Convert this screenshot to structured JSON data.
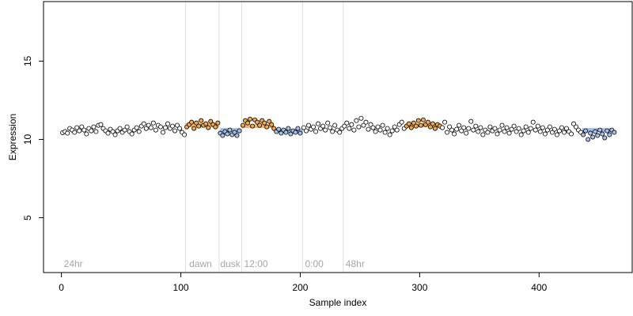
{
  "chart_data": {
    "type": "scatter",
    "title": "",
    "xlabel": "Sample index",
    "ylabel": "Expression",
    "xlim": [
      -15,
      478
    ],
    "ylim": [
      1.5,
      18.8
    ],
    "x_ticks": [
      0,
      100,
      200,
      300,
      400
    ],
    "y_ticks": [
      5,
      10,
      15
    ],
    "grid": false,
    "boundaries": [
      104,
      132,
      151,
      202,
      236
    ],
    "phase_labels": [
      {
        "text": "24hr",
        "x": 2
      },
      {
        "text": "dawn",
        "x": 107
      },
      {
        "text": "dusk",
        "x": 133
      },
      {
        "text": "12:00",
        "x": 153
      },
      {
        "text": "0:00",
        "x": 204
      },
      {
        "text": "48hr",
        "x": 238
      }
    ],
    "fit_segments": [
      {
        "x_start": 104,
        "x_end": 132,
        "y": 10.9,
        "color": "#e8a862"
      },
      {
        "x_start": 133,
        "x_end": 150,
        "y": 10.6,
        "color": "#8fb0e0"
      },
      {
        "x_start": 151,
        "x_end": 178,
        "y": 10.85,
        "color": "#e8a862"
      },
      {
        "x_start": 179,
        "x_end": 202,
        "y": 10.55,
        "color": "#8fb0e0"
      },
      {
        "x_start": 288,
        "x_end": 318,
        "y": 10.9,
        "color": "#e8a862"
      },
      {
        "x_start": 436,
        "x_end": 462,
        "y": 10.6,
        "color": "#8fb0e0"
      }
    ],
    "series": [
      {
        "marker_stroke": "#000000",
        "colors": {
          "day": "#f2a94a",
          "night": "#a9c1e8",
          "other": "#ffffff"
        },
        "points": [
          [
            1,
            10.43
          ],
          [
            3,
            10.5
          ],
          [
            5,
            10.4
          ],
          [
            7,
            10.7
          ],
          [
            9,
            10.6
          ],
          [
            11,
            10.45
          ],
          [
            13,
            10.75
          ],
          [
            15,
            10.55
          ],
          [
            17,
            10.8
          ],
          [
            19,
            10.6
          ],
          [
            21,
            10.35
          ],
          [
            23,
            10.7
          ],
          [
            25,
            10.55
          ],
          [
            27,
            10.8
          ],
          [
            29,
            10.5
          ],
          [
            31,
            10.9
          ],
          [
            33,
            10.95
          ],
          [
            35,
            10.7
          ],
          [
            37,
            10.55
          ],
          [
            39,
            10.4
          ],
          [
            41,
            10.65
          ],
          [
            43,
            10.5
          ],
          [
            45,
            10.3
          ],
          [
            47,
            10.55
          ],
          [
            49,
            10.7
          ],
          [
            51,
            10.45
          ],
          [
            53,
            10.6
          ],
          [
            55,
            10.8
          ],
          [
            57,
            10.5
          ],
          [
            59,
            10.35
          ],
          [
            61,
            10.6
          ],
          [
            63,
            10.75
          ],
          [
            65,
            10.5
          ],
          [
            67,
            10.85
          ],
          [
            69,
            11.0
          ],
          [
            71,
            10.7
          ],
          [
            73,
            10.9
          ],
          [
            75,
            10.75
          ],
          [
            77,
            11.05
          ],
          [
            79,
            10.6
          ],
          [
            81,
            10.9
          ],
          [
            83,
            10.8
          ],
          [
            85,
            10.45
          ],
          [
            87,
            10.75
          ],
          [
            89,
            11.0
          ],
          [
            91,
            10.7
          ],
          [
            93,
            10.85
          ],
          [
            95,
            10.55
          ],
          [
            97,
            10.9
          ],
          [
            99,
            10.7
          ],
          [
            101,
            10.45
          ],
          [
            103,
            10.3
          ],
          [
            105,
            10.8
          ],
          [
            107,
            10.95
          ],
          [
            109,
            11.1
          ],
          [
            111,
            10.7
          ],
          [
            113,
            11.05
          ],
          [
            115,
            10.85
          ],
          [
            117,
            11.2
          ],
          [
            119,
            10.9
          ],
          [
            121,
            11.0
          ],
          [
            123,
            10.75
          ],
          [
            125,
            11.15
          ],
          [
            127,
            10.95
          ],
          [
            129,
            10.8
          ],
          [
            131,
            11.05
          ],
          [
            133,
            10.4
          ],
          [
            135,
            10.25
          ],
          [
            137,
            10.5
          ],
          [
            139,
            10.35
          ],
          [
            141,
            10.6
          ],
          [
            143,
            10.3
          ],
          [
            145,
            10.45
          ],
          [
            147,
            10.25
          ],
          [
            149,
            10.55
          ],
          [
            152,
            10.9
          ],
          [
            154,
            11.2
          ],
          [
            156,
            11.05
          ],
          [
            158,
            11.3
          ],
          [
            160,
            10.85
          ],
          [
            162,
            11.25
          ],
          [
            164,
            11.1
          ],
          [
            166,
            10.9
          ],
          [
            168,
            11.2
          ],
          [
            170,
            11.05
          ],
          [
            172,
            10.8
          ],
          [
            174,
            11.15
          ],
          [
            176,
            10.95
          ],
          [
            178,
            10.7
          ],
          [
            180,
            10.5
          ],
          [
            182,
            10.65
          ],
          [
            184,
            10.4
          ],
          [
            186,
            10.6
          ],
          [
            188,
            10.45
          ],
          [
            190,
            10.7
          ],
          [
            192,
            10.35
          ],
          [
            194,
            10.55
          ],
          [
            196,
            10.45
          ],
          [
            198,
            10.7
          ],
          [
            200,
            10.4
          ],
          [
            203,
            10.75
          ],
          [
            205,
            10.55
          ],
          [
            207,
            10.9
          ],
          [
            209,
            10.65
          ],
          [
            211,
            10.8
          ],
          [
            213,
            10.5
          ],
          [
            215,
            11.0
          ],
          [
            217,
            10.7
          ],
          [
            219,
            10.85
          ],
          [
            221,
            10.6
          ],
          [
            223,
            11.05
          ],
          [
            225,
            10.75
          ],
          [
            227,
            10.5
          ],
          [
            229,
            10.9
          ],
          [
            231,
            10.6
          ],
          [
            233,
            10.45
          ],
          [
            235,
            10.7
          ],
          [
            237,
            10.85
          ],
          [
            239,
            11.05
          ],
          [
            241,
            10.7
          ],
          [
            243,
            10.95
          ],
          [
            245,
            10.6
          ],
          [
            247,
            11.2
          ],
          [
            249,
            10.8
          ],
          [
            251,
            11.35
          ],
          [
            253,
            10.9
          ],
          [
            255,
            11.1
          ],
          [
            257,
            10.65
          ],
          [
            259,
            10.95
          ],
          [
            261,
            10.75
          ],
          [
            263,
            10.5
          ],
          [
            265,
            10.8
          ],
          [
            267,
            10.6
          ],
          [
            269,
            10.9
          ],
          [
            271,
            10.45
          ],
          [
            273,
            10.7
          ],
          [
            275,
            10.3
          ],
          [
            277,
            10.55
          ],
          [
            279,
            10.8
          ],
          [
            281,
            10.6
          ],
          [
            283,
            10.95
          ],
          [
            285,
            11.1
          ],
          [
            287,
            10.7
          ],
          [
            289,
            10.85
          ],
          [
            291,
            11.0
          ],
          [
            293,
            10.75
          ],
          [
            295,
            11.05
          ],
          [
            297,
            10.85
          ],
          [
            299,
            11.2
          ],
          [
            301,
            10.9
          ],
          [
            303,
            11.25
          ],
          [
            305,
            10.95
          ],
          [
            307,
            11.1
          ],
          [
            309,
            10.8
          ],
          [
            311,
            11.0
          ],
          [
            313,
            10.7
          ],
          [
            315,
            10.95
          ],
          [
            317,
            10.85
          ],
          [
            319,
            10.75
          ],
          [
            321,
            11.1
          ],
          [
            323,
            10.45
          ],
          [
            325,
            10.8
          ],
          [
            327,
            10.6
          ],
          [
            329,
            10.35
          ],
          [
            331,
            10.65
          ],
          [
            333,
            10.9
          ],
          [
            335,
            10.55
          ],
          [
            337,
            10.75
          ],
          [
            339,
            10.4
          ],
          [
            341,
            10.7
          ],
          [
            343,
            11.15
          ],
          [
            345,
            10.6
          ],
          [
            347,
            10.85
          ],
          [
            349,
            10.5
          ],
          [
            351,
            10.75
          ],
          [
            353,
            10.3
          ],
          [
            355,
            10.6
          ],
          [
            357,
            10.45
          ],
          [
            359,
            10.8
          ],
          [
            361,
            10.55
          ],
          [
            363,
            10.7
          ],
          [
            365,
            10.35
          ],
          [
            367,
            10.6
          ],
          [
            369,
            10.9
          ],
          [
            371,
            10.5
          ],
          [
            373,
            10.75
          ],
          [
            375,
            10.4
          ],
          [
            377,
            10.65
          ],
          [
            379,
            10.85
          ],
          [
            381,
            10.5
          ],
          [
            383,
            10.7
          ],
          [
            385,
            10.3
          ],
          [
            387,
            10.55
          ],
          [
            389,
            10.8
          ],
          [
            391,
            10.45
          ],
          [
            393,
            10.7
          ],
          [
            395,
            11.1
          ],
          [
            397,
            10.6
          ],
          [
            399,
            10.85
          ],
          [
            401,
            10.5
          ],
          [
            403,
            10.75
          ],
          [
            405,
            10.35
          ],
          [
            407,
            10.6
          ],
          [
            409,
            10.8
          ],
          [
            411,
            10.45
          ],
          [
            413,
            10.65
          ],
          [
            415,
            10.3
          ],
          [
            417,
            10.55
          ],
          [
            419,
            10.75
          ],
          [
            421,
            10.45
          ],
          [
            423,
            10.7
          ],
          [
            425,
            10.5
          ],
          [
            427,
            10.35
          ],
          [
            429,
            11.0
          ],
          [
            431,
            10.8
          ],
          [
            433,
            10.6
          ],
          [
            435,
            10.45
          ],
          [
            437,
            10.3
          ],
          [
            439,
            10.55
          ],
          [
            441,
            10.0
          ],
          [
            443,
            10.4
          ],
          [
            445,
            10.15
          ],
          [
            447,
            10.5
          ],
          [
            449,
            10.25
          ],
          [
            451,
            10.6
          ],
          [
            453,
            10.35
          ],
          [
            455,
            10.1
          ],
          [
            457,
            10.55
          ],
          [
            459,
            10.3
          ],
          [
            461,
            10.6
          ],
          [
            463,
            10.45
          ]
        ]
      }
    ]
  }
}
